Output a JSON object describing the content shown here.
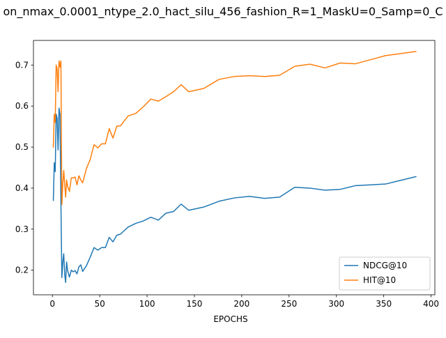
{
  "chart_data": {
    "type": "line",
    "title": "on_nmax_0.0001_ntype_2.0_hact_silu_456_fashion_R=1_MaskU=0_Samp=0_C",
    "xlabel": "EPOCHS",
    "ylabel": "",
    "xlim": [
      -20,
      404
    ],
    "ylim": [
      0.14,
      0.76
    ],
    "xticks": [
      0,
      50,
      100,
      150,
      200,
      250,
      300,
      350,
      400
    ],
    "xtick_labels": [
      "0",
      "50",
      "100",
      "150",
      "200",
      "250",
      "300",
      "350",
      "400"
    ],
    "yticks": [
      0.2,
      0.3,
      0.4,
      0.5,
      0.6,
      0.7
    ],
    "ytick_labels": [
      "0.2",
      "0.3",
      "0.4",
      "0.5",
      "0.6",
      "0.7"
    ],
    "grid": false,
    "legend_position": "lower-right",
    "series": [
      {
        "name": "NDCG@10",
        "color": "#1f77b4",
        "x": [
          1,
          2,
          3,
          4,
          5,
          6,
          7,
          8,
          9,
          10,
          11,
          12,
          13,
          14,
          15,
          16,
          18,
          20,
          22,
          24,
          26,
          28,
          30,
          32,
          36,
          40,
          44,
          48,
          52,
          56,
          60,
          64,
          68,
          72,
          80,
          88,
          96,
          104,
          112,
          120,
          128,
          136,
          144,
          160,
          176,
          192,
          208,
          224,
          240,
          256,
          272,
          288,
          304,
          320,
          336,
          352,
          368,
          384
        ],
        "y": [
          0.37,
          0.462,
          0.44,
          0.58,
          0.57,
          0.493,
          0.595,
          0.58,
          0.37,
          0.182,
          0.22,
          0.24,
          0.19,
          0.17,
          0.22,
          0.2,
          0.183,
          0.2,
          0.196,
          0.199,
          0.191,
          0.208,
          0.213,
          0.197,
          0.211,
          0.232,
          0.255,
          0.249,
          0.255,
          0.255,
          0.28,
          0.269,
          0.285,
          0.288,
          0.305,
          0.314,
          0.32,
          0.329,
          0.322,
          0.339,
          0.343,
          0.361,
          0.346,
          0.354,
          0.368,
          0.376,
          0.38,
          0.375,
          0.378,
          0.402,
          0.4,
          0.395,
          0.397,
          0.406,
          0.408,
          0.41,
          0.419,
          0.428
        ]
      },
      {
        "name": "HIT@10",
        "color": "#ff7f0e",
        "x": [
          1,
          2,
          3,
          4,
          5,
          6,
          7,
          8,
          9,
          10,
          11,
          12,
          13,
          14,
          15,
          16,
          18,
          20,
          22,
          24,
          26,
          28,
          30,
          32,
          36,
          40,
          44,
          48,
          52,
          56,
          60,
          64,
          68,
          72,
          80,
          88,
          96,
          104,
          112,
          120,
          128,
          136,
          144,
          160,
          176,
          192,
          208,
          224,
          240,
          256,
          272,
          288,
          304,
          320,
          336,
          352,
          368,
          384
        ],
        "y": [
          0.5,
          0.58,
          0.56,
          0.7,
          0.69,
          0.635,
          0.71,
          0.695,
          0.71,
          0.36,
          0.41,
          0.443,
          0.41,
          0.378,
          0.42,
          0.405,
          0.392,
          0.425,
          0.425,
          0.427,
          0.408,
          0.43,
          0.42,
          0.413,
          0.448,
          0.47,
          0.506,
          0.498,
          0.508,
          0.508,
          0.545,
          0.522,
          0.551,
          0.552,
          0.576,
          0.582,
          0.598,
          0.617,
          0.612,
          0.623,
          0.635,
          0.652,
          0.635,
          0.643,
          0.665,
          0.672,
          0.674,
          0.672,
          0.675,
          0.697,
          0.702,
          0.693,
          0.705,
          0.703,
          0.713,
          0.723,
          0.728,
          0.733
        ]
      }
    ]
  }
}
